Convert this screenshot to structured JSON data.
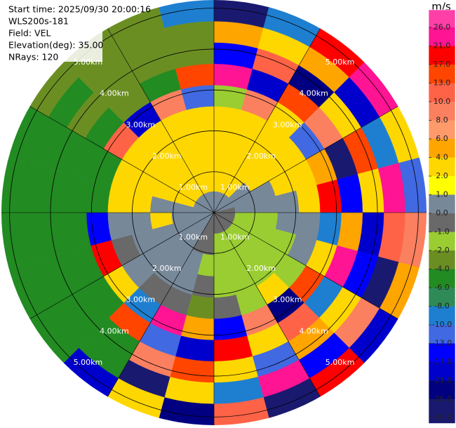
{
  "chart_data": {
    "type": "ppi",
    "title_lines": [
      "Start time: 2025/09/30 20:00:16",
      "WLS200s-181",
      "Field: VEL",
      "Elevation(deg): 35.00",
      "NRays: 120"
    ],
    "rlim": [
      0,
      5.2
    ],
    "rings": [
      {
        "value": 1,
        "label": "1.00km"
      },
      {
        "value": 2,
        "label": "2.00km"
      },
      {
        "value": 3,
        "label": "3.00km"
      },
      {
        "value": 4,
        "label": "4.00km"
      },
      {
        "value": 5,
        "label": "5.00km"
      }
    ],
    "values": [
      [
        0.5,
        2.5,
        3,
        3,
        2.5,
        -1.5,
        22,
        -15,
        5,
        -28
      ],
      [
        0.5,
        3,
        3,
        2.5,
        3,
        8,
        -20,
        12,
        3,
        -9
      ],
      [
        0.5,
        2.5,
        3,
        3,
        2.5,
        3,
        15,
        -24,
        5,
        18
      ],
      [
        0.5,
        0.5,
        3,
        2.5,
        3,
        -12,
        8,
        3,
        -20,
        22
      ],
      [
        0.5,
        0.5,
        0.5,
        2.5,
        3,
        5,
        -28,
        15,
        -9,
        3
      ],
      [
        -0.5,
        0.5,
        0.5,
        0.5,
        2.5,
        18,
        -15,
        3,
        24,
        -12
      ],
      [
        -0.5,
        -1.5,
        -1.5,
        0.5,
        0.5,
        -9,
        5,
        -20,
        12,
        8
      ],
      [
        -0.5,
        -1.5,
        -1.5,
        -1.5,
        0.5,
        3,
        22,
        -15,
        -28,
        5
      ],
      [
        -0.5,
        -1.5,
        -1.5,
        -1.5,
        -1.5,
        15,
        -9,
        3,
        8,
        -20
      ],
      [
        -0.5,
        -1.5,
        -1.5,
        -1.5,
        2.5,
        -24,
        12,
        5,
        -15,
        18
      ],
      [
        -0.5,
        -1.5,
        -1.5,
        -1.5,
        -1.5,
        8,
        3,
        -12,
        22,
        -28
      ],
      [
        -0.5,
        -1.5,
        -1.5,
        -1.5,
        -0.5,
        -15,
        18,
        3,
        -9,
        12
      ],
      [
        -0.5,
        -0.5,
        -1.5,
        -0.5,
        -3,
        5,
        -20,
        15,
        3,
        -24
      ],
      [
        -0.5,
        -0.5,
        0.5,
        0.5,
        -0.5,
        22,
        -12,
        8,
        -28,
        3
      ],
      [
        0.5,
        0.5,
        0.5,
        0.5,
        -0.5,
        -9,
        15,
        -5,
        -5,
        -20
      ],
      [
        0.5,
        0.5,
        0.5,
        0.5,
        0.5,
        3,
        -5,
        -5,
        -5,
        -5
      ],
      [
        0.5,
        0.5,
        0.5,
        0.5,
        -0.5,
        18,
        -5,
        -5,
        -5,
        -5
      ],
      [
        0.5,
        0.5,
        3,
        0.5,
        0.5,
        -15,
        -5,
        -5,
        -5,
        -5
      ],
      [
        0.5,
        0.5,
        0.5,
        2.5,
        3,
        -5,
        -5,
        -5,
        -5,
        -5
      ],
      [
        0.5,
        3,
        2.5,
        3,
        2.5,
        -5,
        -5,
        -5,
        -5,
        -5
      ],
      [
        0.5,
        2.5,
        3,
        3,
        3,
        12,
        -5,
        -3,
        -5,
        -3
      ],
      [
        0.5,
        3,
        3,
        2.5,
        3,
        -20,
        -3,
        -3,
        -3,
        -3
      ],
      [
        0.5,
        2.5,
        3,
        3,
        2.5,
        8,
        -5,
        -3,
        -3,
        -3
      ],
      [
        0.5,
        3,
        2.5,
        3,
        3,
        -12,
        15,
        -3,
        -3,
        -9
      ]
    ],
    "colorbar": {
      "label": "m/s",
      "ticks": [
        {
          "value": 26,
          "label": "26.0"
        },
        {
          "value": 21,
          "label": "21.0"
        },
        {
          "value": 17,
          "label": "17.0"
        },
        {
          "value": 13,
          "label": "13.0"
        },
        {
          "value": 10,
          "label": "10.0"
        },
        {
          "value": 8,
          "label": "8.0"
        },
        {
          "value": 6,
          "label": "6.0"
        },
        {
          "value": 4,
          "label": "4.0"
        },
        {
          "value": 2,
          "label": "2.0"
        },
        {
          "value": 1,
          "label": "1.0"
        },
        {
          "value": 0,
          "label": "0.0"
        },
        {
          "value": -1,
          "label": "-1.0"
        },
        {
          "value": -2,
          "label": "-2.0"
        },
        {
          "value": -4,
          "label": "-4.0"
        },
        {
          "value": -6,
          "label": "-6.0"
        },
        {
          "value": -8,
          "label": "-8.0"
        },
        {
          "value": -10,
          "label": "-10.0"
        },
        {
          "value": -13,
          "label": "-13.0"
        },
        {
          "value": -17,
          "label": "-17.0"
        },
        {
          "value": -21,
          "label": "-21.0"
        },
        {
          "value": -26,
          "label": "-26.0"
        },
        {
          "value": -30,
          "label": "-30.0"
        }
      ],
      "colors": [
        "#ff3fa8",
        "#ff1493",
        "#ff0000",
        "#ff4500",
        "#ff6347",
        "#fa8060",
        "#ff9a6a",
        "#ffa500",
        "#ffd700",
        "#ffff00",
        "#778899",
        "#696969",
        "#9acd32",
        "#6b8e23",
        "#228b22",
        "#2e8b57",
        "#1e7fd0",
        "#4169e1",
        "#0000ff",
        "#0000cd",
        "#000080",
        "#191970"
      ]
    }
  }
}
